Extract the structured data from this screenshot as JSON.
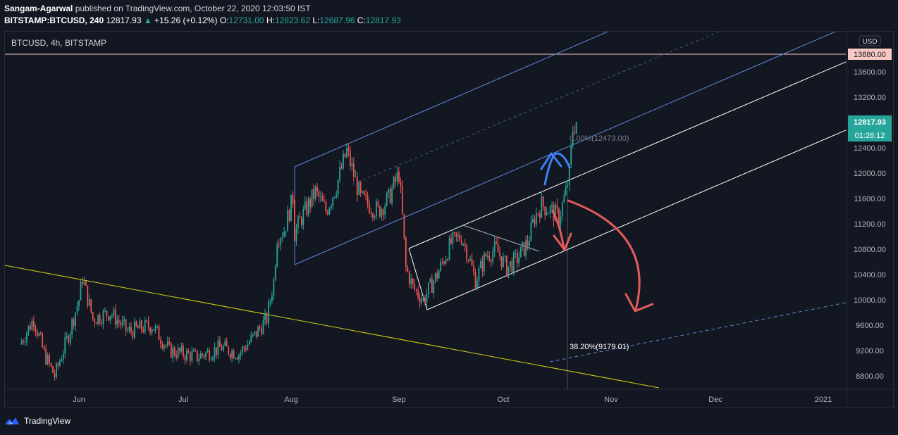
{
  "header": {
    "author": "Sangam-Agarwal",
    "published_text": "published on TradingView.com, October 22, 2020 12:03:50 IST",
    "symbol": "BITSTAMP:BTCUSD, 240",
    "last": "12817.93",
    "change": "+15.26 (+0.12%)",
    "o_label": "O:",
    "o_value": "12731.00",
    "h_label": "H:",
    "h_value": "12823.62",
    "l_label": "L:",
    "l_value": "12687.96",
    "c_label": "C:",
    "c_value": "12817.93"
  },
  "legend": "BTCUSD, 4h, BITSTAMP",
  "currency": "USD",
  "footer": {
    "brand": "TradingView"
  },
  "colors": {
    "background": "#131722",
    "up": "#26a69a",
    "down": "#ef5350",
    "trendline": "#d4d00f",
    "channel_blue": "#5b8bd6",
    "channel_white": "#ffffff",
    "arrow_blue": "#3b82f6",
    "arrow_red": "#e45b5b",
    "resistance_tag": "#f8c9c4"
  },
  "chart_data": {
    "type": "candlestick",
    "title": "BTCUSD, 4h, BITSTAMP",
    "y_axis": {
      "ticks": [
        13600,
        13200,
        12400,
        12000,
        11600,
        11200,
        10800,
        10400,
        10000,
        9600,
        9200,
        8800
      ],
      "tick_labels": [
        "13600.00",
        "13200.00",
        "12400.00",
        "12000.00",
        "11600.00",
        "11200.00",
        "10800.00",
        "10400.00",
        "10000.00",
        "9600.00",
        "9200.00",
        "8800.00"
      ],
      "range": [
        8600,
        14600
      ]
    },
    "x_axis": {
      "tick_labels": [
        "Jun",
        "Jul",
        "Aug",
        "Sep",
        "Oct",
        "Nov",
        "Dec",
        "2021"
      ]
    },
    "price_tags": {
      "resistance": {
        "value": 13880,
        "label": "13880.00"
      },
      "last": {
        "value": 12817.93,
        "label": "12817.93"
      },
      "countdown": "01:26:12"
    },
    "fib_labels": [
      {
        "text": "0.00%(12473.00)",
        "value": 12473
      },
      {
        "text": "38.20%(9179.01)",
        "value": 9179
      }
    ],
    "price_path": [
      {
        "date": "2020-05-15",
        "value": 9300
      },
      {
        "date": "2020-05-19",
        "value": 9700
      },
      {
        "date": "2020-05-22",
        "value": 9150
      },
      {
        "date": "2020-05-25",
        "value": 8800
      },
      {
        "date": "2020-05-29",
        "value": 9450
      },
      {
        "date": "2020-06-01",
        "value": 10000
      },
      {
        "date": "2020-06-02",
        "value": 10350
      },
      {
        "date": "2020-06-05",
        "value": 9700
      },
      {
        "date": "2020-06-10",
        "value": 9800
      },
      {
        "date": "2020-06-15",
        "value": 9500
      },
      {
        "date": "2020-06-22",
        "value": 9600
      },
      {
        "date": "2020-06-27",
        "value": 9200
      },
      {
        "date": "2020-07-05",
        "value": 9100
      },
      {
        "date": "2020-07-12",
        "value": 9250
      },
      {
        "date": "2020-07-17",
        "value": 9150
      },
      {
        "date": "2020-07-21",
        "value": 9400
      },
      {
        "date": "2020-07-25",
        "value": 9700
      },
      {
        "date": "2020-07-27",
        "value": 10300
      },
      {
        "date": "2020-07-28",
        "value": 11000
      },
      {
        "date": "2020-07-30",
        "value": 11100
      },
      {
        "date": "2020-08-02",
        "value": 11700
      },
      {
        "date": "2020-08-02",
        "value": 11050
      },
      {
        "date": "2020-08-04",
        "value": 11300
      },
      {
        "date": "2020-08-08",
        "value": 11700
      },
      {
        "date": "2020-08-11",
        "value": 11400
      },
      {
        "date": "2020-08-14",
        "value": 11800
      },
      {
        "date": "2020-08-17",
        "value": 12350
      },
      {
        "date": "2020-08-21",
        "value": 11600
      },
      {
        "date": "2020-08-26",
        "value": 11400
      },
      {
        "date": "2020-08-29",
        "value": 11600
      },
      {
        "date": "2020-09-01",
        "value": 12000
      },
      {
        "date": "2020-09-02",
        "value": 11300
      },
      {
        "date": "2020-09-03",
        "value": 10500
      },
      {
        "date": "2020-09-05",
        "value": 10200
      },
      {
        "date": "2020-09-08",
        "value": 10000
      },
      {
        "date": "2020-09-12",
        "value": 10400
      },
      {
        "date": "2020-09-16",
        "value": 10900
      },
      {
        "date": "2020-09-19",
        "value": 11000
      },
      {
        "date": "2020-09-21",
        "value": 10700
      },
      {
        "date": "2020-09-23",
        "value": 10300
      },
      {
        "date": "2020-09-26",
        "value": 10700
      },
      {
        "date": "2020-09-29",
        "value": 10800
      },
      {
        "date": "2020-10-02",
        "value": 10500
      },
      {
        "date": "2020-10-05",
        "value": 10650
      },
      {
        "date": "2020-10-08",
        "value": 10900
      },
      {
        "date": "2020-10-10",
        "value": 11300
      },
      {
        "date": "2020-10-12",
        "value": 11500
      },
      {
        "date": "2020-10-15",
        "value": 11400
      },
      {
        "date": "2020-10-17",
        "value": 11300
      },
      {
        "date": "2020-10-19",
        "value": 11700
      },
      {
        "date": "2020-10-20",
        "value": 12000
      },
      {
        "date": "2020-10-21",
        "value": 12700
      },
      {
        "date": "2020-10-22",
        "value": 12817.93
      }
    ]
  }
}
